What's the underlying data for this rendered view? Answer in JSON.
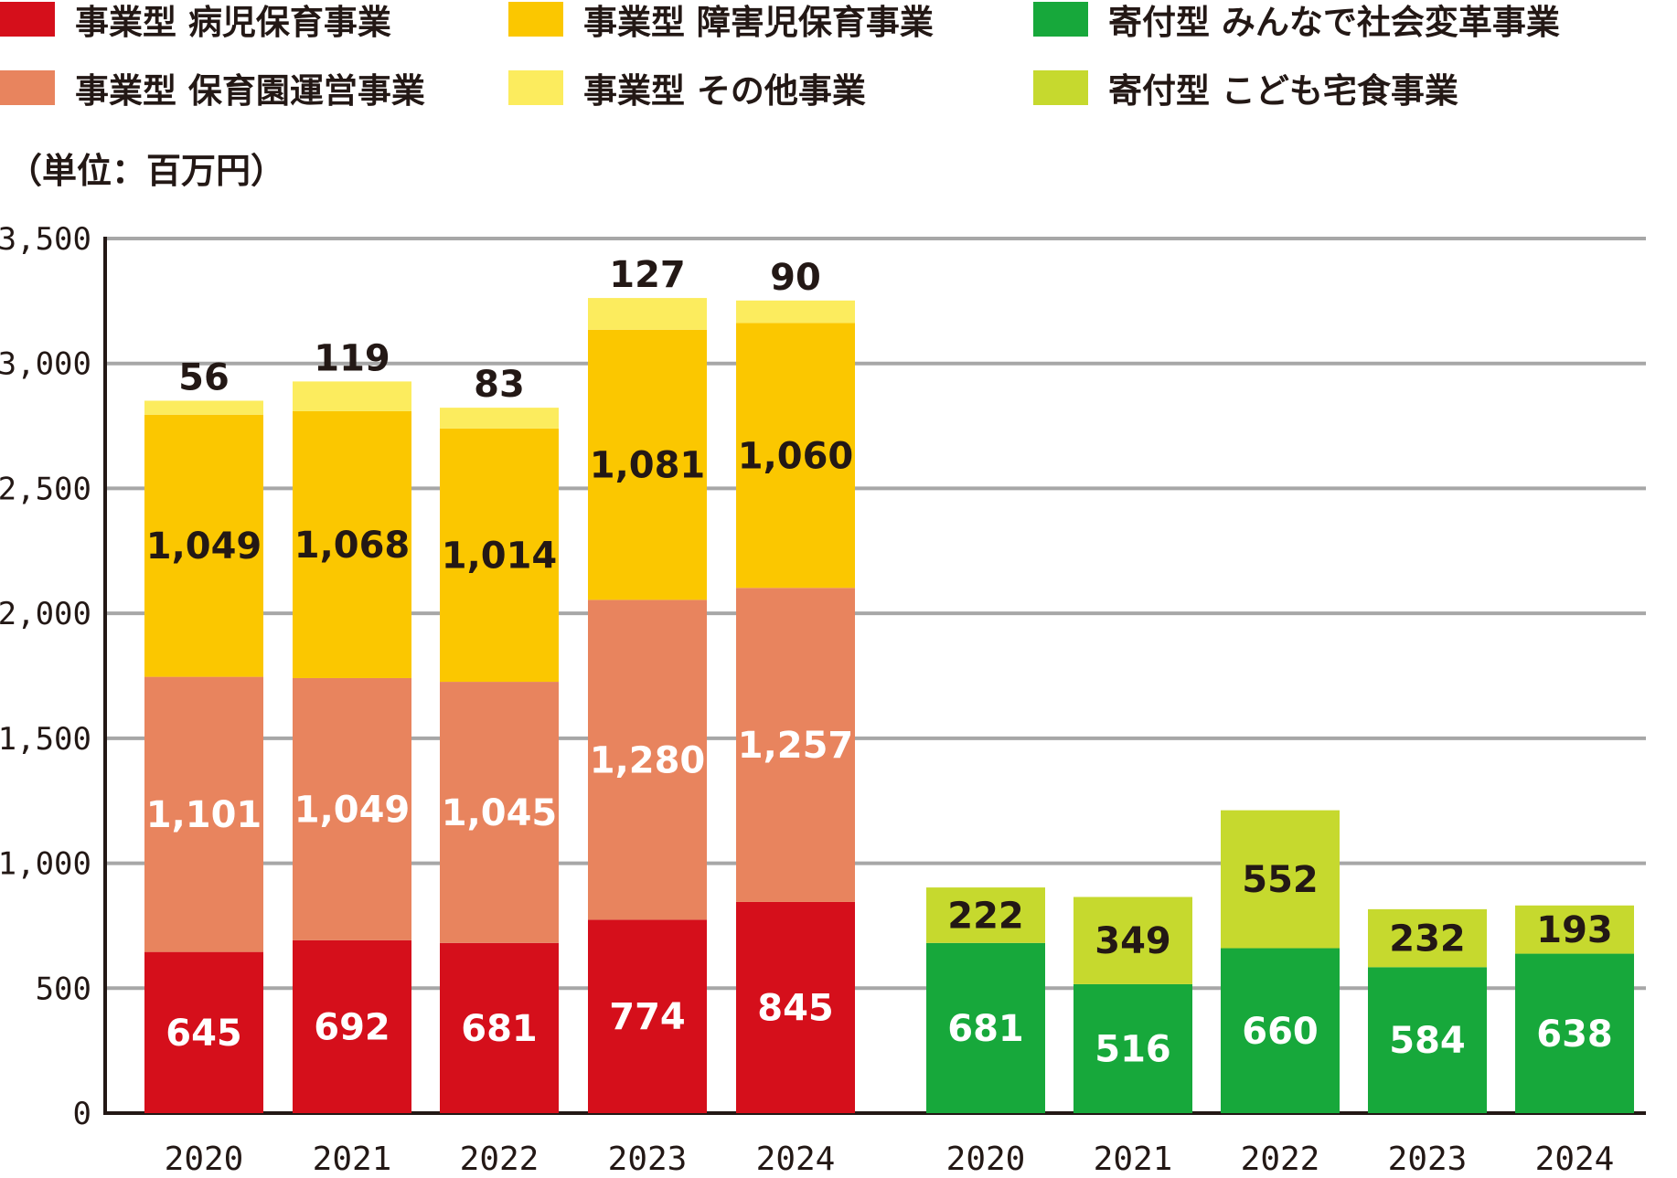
{
  "legend": {
    "items": [
      {
        "label": "事業型 病児保育事業",
        "color": "#d50f1b"
      },
      {
        "label": "事業型 障害児保育事業",
        "color": "#fbc700"
      },
      {
        "label": "寄付型 みんなで社会変革事業",
        "color": "#17a83b"
      },
      {
        "label": "事業型 保育園運営事業",
        "color": "#e8845e"
      },
      {
        "label": "事業型 その他事業",
        "color": "#fcec5e"
      },
      {
        "label": "寄付型 こども宅食事業",
        "color": "#c6d92e"
      }
    ]
  },
  "unit_label": "（単位：百万円）",
  "chart_data": [
    {
      "type": "bar",
      "stacked": true,
      "group": "事業型",
      "categories": [
        "2020",
        "2021",
        "2022",
        "2023",
        "2024"
      ],
      "series": [
        {
          "name": "事業型 病児保育事業",
          "color": "#d50f1b",
          "label_color": "#ffffff",
          "values": [
            645,
            692,
            681,
            774,
            845
          ],
          "labels": [
            "645",
            "692",
            "681",
            "774",
            "845"
          ]
        },
        {
          "name": "事業型 保育園運営事業",
          "color": "#e8845e",
          "label_color": "#ffffff",
          "values": [
            1101,
            1049,
            1045,
            1280,
            1257
          ],
          "labels": [
            "1,101",
            "1,049",
            "1,045",
            "1,280",
            "1,257"
          ]
        },
        {
          "name": "事業型 障害児保育事業",
          "color": "#fbc700",
          "label_color": "#231815",
          "values": [
            1049,
            1068,
            1014,
            1081,
            1060
          ],
          "labels": [
            "1,049",
            "1,068",
            "1,014",
            "1,081",
            "1,060"
          ]
        },
        {
          "name": "事業型 その他事業",
          "color": "#fcec5e",
          "label_color": "#231815",
          "label_above": true,
          "values": [
            56,
            119,
            83,
            127,
            90
          ],
          "labels": [
            "56",
            "119",
            "83",
            "127",
            "90"
          ]
        }
      ],
      "ylim": [
        0,
        3500
      ],
      "yticks": [
        0,
        500,
        1000,
        1500,
        2000,
        2500,
        3000,
        3500
      ],
      "ytick_labels": [
        "0",
        "500",
        "1,000",
        "1,500",
        "2,000",
        "2,500",
        "3,000",
        "3,500"
      ],
      "grid": true
    },
    {
      "type": "bar",
      "stacked": true,
      "group": "寄付型",
      "categories": [
        "2020",
        "2021",
        "2022",
        "2023",
        "2024"
      ],
      "series": [
        {
          "name": "寄付型 みんなで社会変革事業",
          "color": "#17a83b",
          "label_color": "#ffffff",
          "values": [
            681,
            516,
            660,
            584,
            638
          ],
          "labels": [
            "681",
            "516",
            "660",
            "584",
            "638"
          ]
        },
        {
          "name": "寄付型 こども宅食事業",
          "color": "#c6d92e",
          "label_color": "#231815",
          "values": [
            222,
            349,
            552,
            232,
            193
          ],
          "labels": [
            "222",
            "349",
            "552",
            "232",
            "193"
          ]
        }
      ],
      "ylim": [
        0,
        3500
      ],
      "grid": true
    }
  ]
}
